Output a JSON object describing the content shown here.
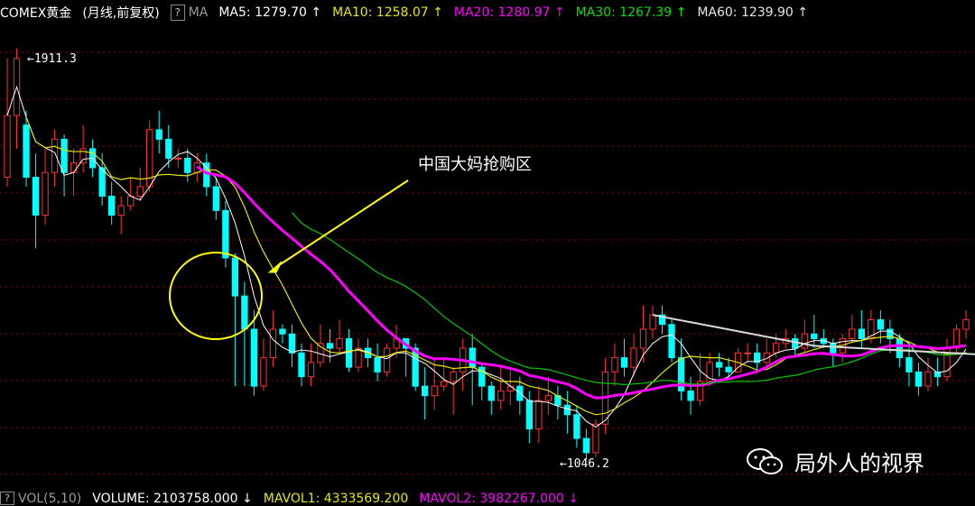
{
  "header": {
    "symbol": "COMEX黄金",
    "period": "(月线,前复权)",
    "help": "?",
    "ma_label": "MA",
    "ma_items": [
      {
        "text": "MA5: 1279.70",
        "arrow": "↑",
        "color": "#ffffff"
      },
      {
        "text": "MA10: 1258.07",
        "arrow": "↑",
        "color": "#e6e600"
      },
      {
        "text": "MA20: 1280.97",
        "arrow": "↑",
        "color": "#ff00ff"
      },
      {
        "text": "MA30: 1267.39",
        "arrow": "↑",
        "color": "#00e000"
      },
      {
        "text": "MA60: 1239.90",
        "arrow": "↑",
        "color": "#e6e6e6"
      }
    ]
  },
  "footer": {
    "help": "?",
    "vol_label": "VOL(5,10)",
    "volume": "VOLUME: 2103758.000",
    "volume_arrow": "↓",
    "mavol1": "MAVOL1: 4333569.200",
    "mavol2": "MAVOL2: 3982267.000",
    "mavol2_arrow": "↓"
  },
  "annotation": {
    "text": "中国大妈抢购区"
  },
  "watermark": {
    "text": "局外人的视界",
    "icon": "wechat-icon"
  },
  "colors": {
    "up": "#ff3232",
    "down": "#00ffff",
    "ma5": "#ffffff",
    "ma10": "#e6e600",
    "ma20": "#ff00ff",
    "ma30": "#00c800",
    "trendline": "#dcdcdc",
    "annotation": "#ffff00",
    "grid": "#8b0000"
  },
  "chart_data": {
    "type": "candlestick",
    "period": "monthly",
    "ylim": [
      980,
      1960
    ],
    "high_label": "1911.3",
    "low_label": "1046.2",
    "candles": [
      [
        1640,
        1770,
        1890,
        1620
      ],
      [
        1770,
        1890,
        1911.3,
        1700
      ],
      [
        1750,
        1640,
        1780,
        1620
      ],
      [
        1640,
        1560,
        1690,
        1490
      ],
      [
        1560,
        1650,
        1700,
        1540
      ],
      [
        1650,
        1720,
        1740,
        1620
      ],
      [
        1720,
        1650,
        1730,
        1600
      ],
      [
        1650,
        1670,
        1700,
        1600
      ],
      [
        1670,
        1700,
        1750,
        1650
      ],
      [
        1700,
        1660,
        1720,
        1640
      ],
      [
        1660,
        1600,
        1690,
        1580
      ],
      [
        1600,
        1560,
        1630,
        1540
      ],
      [
        1560,
        1580,
        1600,
        1520
      ],
      [
        1580,
        1600,
        1640,
        1570
      ],
      [
        1600,
        1620,
        1660,
        1590
      ],
      [
        1620,
        1740,
        1760,
        1610
      ],
      [
        1740,
        1720,
        1780,
        1690
      ],
      [
        1720,
        1680,
        1750,
        1660
      ],
      [
        1680,
        1680,
        1700,
        1660
      ],
      [
        1680,
        1650,
        1700,
        1630
      ],
      [
        1650,
        1670,
        1690,
        1630
      ],
      [
        1670,
        1620,
        1690,
        1600
      ],
      [
        1620,
        1570,
        1640,
        1550
      ],
      [
        1570,
        1470,
        1590,
        1450
      ],
      [
        1470,
        1390,
        1480,
        1200
      ],
      [
        1390,
        1320,
        1420,
        1200
      ],
      [
        1320,
        1200,
        1360,
        1180
      ],
      [
        1200,
        1260,
        1300,
        1190
      ],
      [
        1260,
        1320,
        1360,
        1240
      ],
      [
        1320,
        1310,
        1330,
        1290
      ],
      [
        1310,
        1270,
        1330,
        1240
      ],
      [
        1270,
        1220,
        1290,
        1200
      ],
      [
        1220,
        1250,
        1290,
        1200
      ],
      [
        1250,
        1290,
        1330,
        1240
      ],
      [
        1290,
        1280,
        1320,
        1250
      ],
      [
        1280,
        1300,
        1340,
        1270
      ],
      [
        1300,
        1240,
        1320,
        1230
      ],
      [
        1240,
        1280,
        1300,
        1230
      ],
      [
        1280,
        1260,
        1300,
        1240
      ],
      [
        1260,
        1230,
        1290,
        1210
      ],
      [
        1230,
        1280,
        1290,
        1220
      ],
      [
        1280,
        1300,
        1330,
        1260
      ],
      [
        1300,
        1280,
        1300,
        1220
      ],
      [
        1280,
        1200,
        1290,
        1190
      ],
      [
        1200,
        1180,
        1240,
        1130
      ],
      [
        1180,
        1200,
        1260,
        1150
      ],
      [
        1200,
        1210,
        1260,
        1190
      ],
      [
        1210,
        1230,
        1240,
        1140
      ],
      [
        1230,
        1280,
        1300,
        1190
      ],
      [
        1280,
        1240,
        1310,
        1160
      ],
      [
        1240,
        1200,
        1250,
        1170
      ],
      [
        1200,
        1170,
        1210,
        1140
      ],
      [
        1170,
        1190,
        1240,
        1150
      ],
      [
        1190,
        1200,
        1240,
        1160
      ],
      [
        1200,
        1170,
        1220,
        1140
      ],
      [
        1170,
        1110,
        1190,
        1080
      ],
      [
        1110,
        1170,
        1200,
        1080
      ],
      [
        1170,
        1180,
        1220,
        1140
      ],
      [
        1180,
        1160,
        1200,
        1130
      ],
      [
        1160,
        1140,
        1190,
        1100
      ],
      [
        1140,
        1090,
        1160,
        1070
      ],
      [
        1090,
        1060,
        1110,
        1046.2
      ],
      [
        1060,
        1120,
        1130,
        1050
      ],
      [
        1120,
        1230,
        1260,
        1100
      ],
      [
        1230,
        1260,
        1290,
        1200
      ],
      [
        1260,
        1240,
        1300,
        1220
      ],
      [
        1240,
        1280,
        1310,
        1220
      ],
      [
        1280,
        1320,
        1370,
        1250
      ],
      [
        1320,
        1350,
        1370,
        1300
      ],
      [
        1350,
        1330,
        1370,
        1310
      ],
      [
        1330,
        1260,
        1340,
        1250
      ],
      [
        1260,
        1190,
        1300,
        1170
      ],
      [
        1190,
        1170,
        1220,
        1140
      ],
      [
        1170,
        1210,
        1270,
        1160
      ],
      [
        1210,
        1250,
        1270,
        1200
      ],
      [
        1250,
        1240,
        1270,
        1220
      ],
      [
        1240,
        1230,
        1260,
        1220
      ],
      [
        1230,
        1270,
        1280,
        1230
      ],
      [
        1270,
        1270,
        1290,
        1250
      ],
      [
        1270,
        1250,
        1290,
        1230
      ],
      [
        1250,
        1270,
        1300,
        1240
      ],
      [
        1270,
        1290,
        1310,
        1260
      ],
      [
        1290,
        1300,
        1320,
        1280
      ],
      [
        1300,
        1280,
        1310,
        1260
      ],
      [
        1280,
        1310,
        1340,
        1270
      ],
      [
        1310,
        1300,
        1350,
        1280
      ],
      [
        1300,
        1290,
        1320,
        1280
      ],
      [
        1290,
        1270,
        1300,
        1240
      ],
      [
        1270,
        1300,
        1310,
        1250
      ],
      [
        1300,
        1320,
        1350,
        1290
      ],
      [
        1320,
        1300,
        1360,
        1280
      ],
      [
        1300,
        1340,
        1360,
        1290
      ],
      [
        1340,
        1320,
        1360,
        1290
      ],
      [
        1320,
        1300,
        1340,
        1270
      ],
      [
        1300,
        1260,
        1310,
        1240
      ],
      [
        1260,
        1230,
        1290,
        1200
      ],
      [
        1230,
        1200,
        1250,
        1180
      ],
      [
        1200,
        1230,
        1260,
        1190
      ],
      [
        1230,
        1220,
        1260,
        1200
      ],
      [
        1220,
        1280,
        1300,
        1210
      ],
      [
        1280,
        1320,
        1330,
        1270
      ],
      [
        1320,
        1340,
        1360,
        1300
      ]
    ],
    "annotations": [
      {
        "text": "中国大妈抢购区"
      }
    ]
  }
}
